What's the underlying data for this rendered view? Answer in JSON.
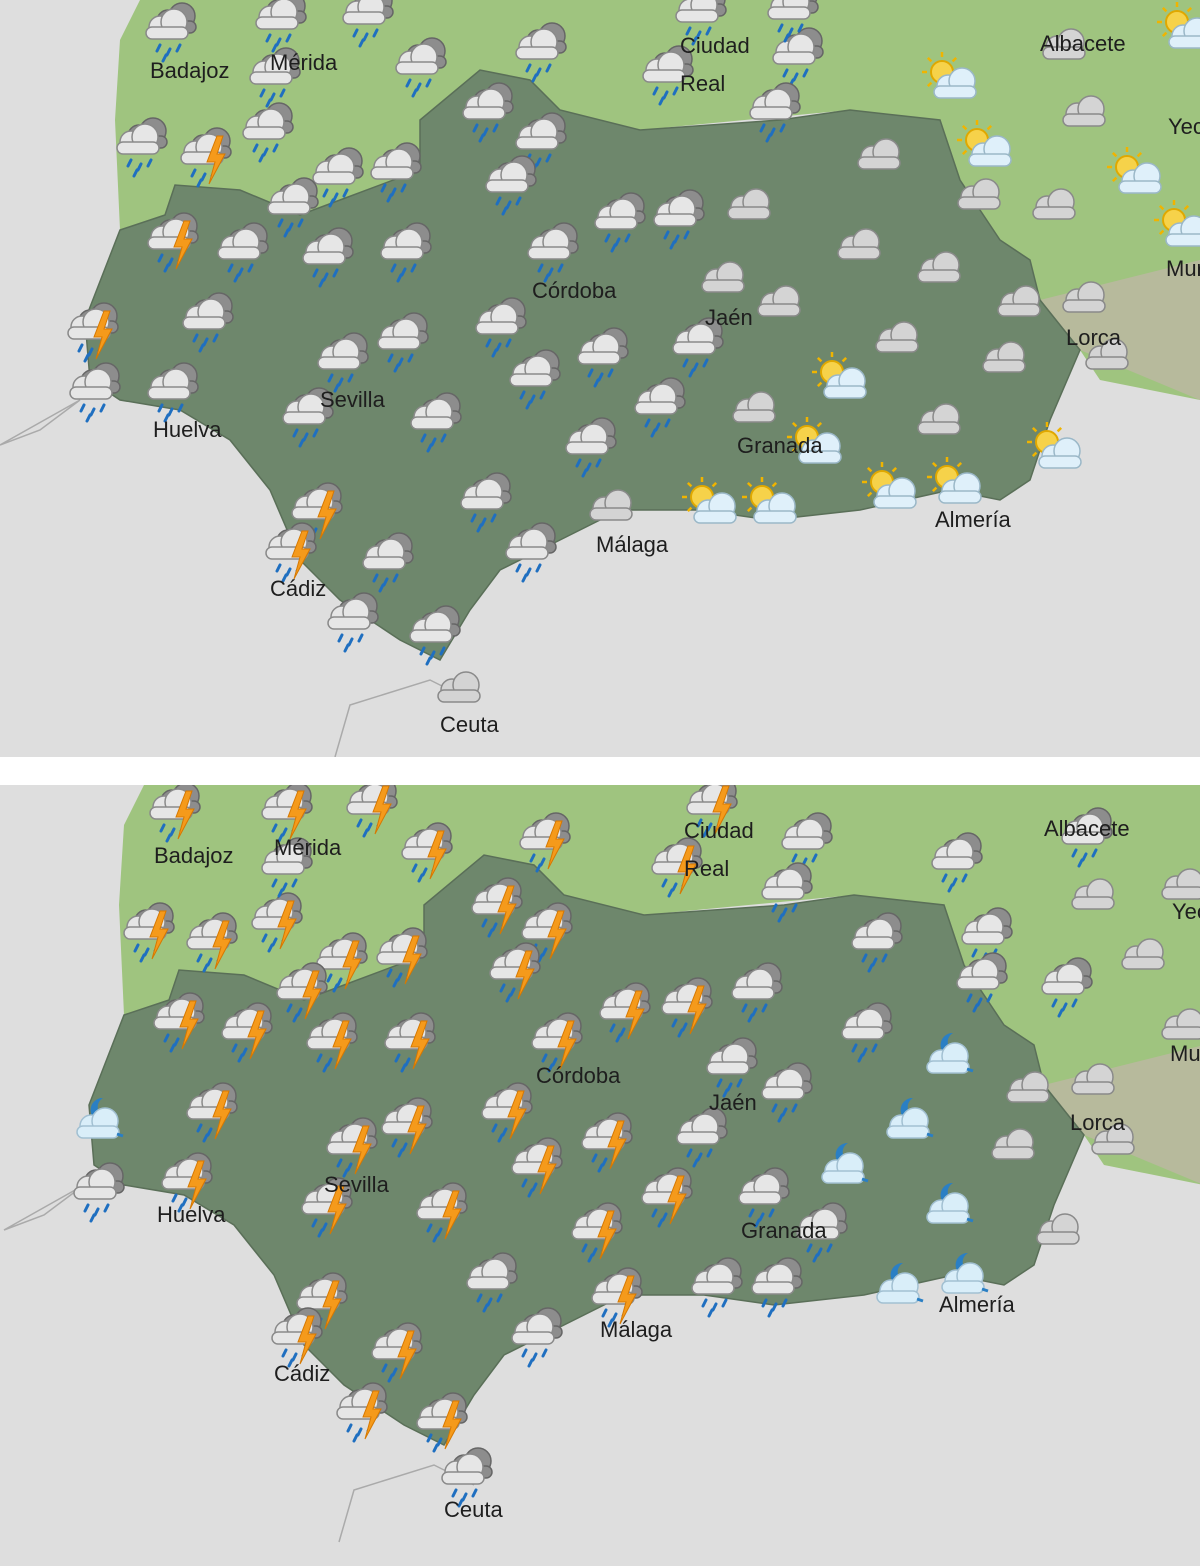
{
  "panels": [
    {
      "cities": [
        "Badajoz",
        "Mérida",
        "Ciudad",
        "Real",
        "Albacete",
        "Yecla",
        "Murcia",
        "Lorca",
        "Córdoba",
        "Jaén",
        "Sevilla",
        "Huelva",
        "Granada",
        "Almería",
        "Málaga",
        "Cádiz",
        "Ceuta"
      ]
    },
    {
      "cities": [
        "Badajoz",
        "Mérida",
        "Ciudad",
        "Real",
        "Albacete",
        "Yecla",
        "Murcia",
        "Lorca",
        "Córdoba",
        "Jaén",
        "Sevilla",
        "Huelva",
        "Granada",
        "Almería",
        "Málaga",
        "Cádiz",
        "Ceuta"
      ]
    }
  ]
}
